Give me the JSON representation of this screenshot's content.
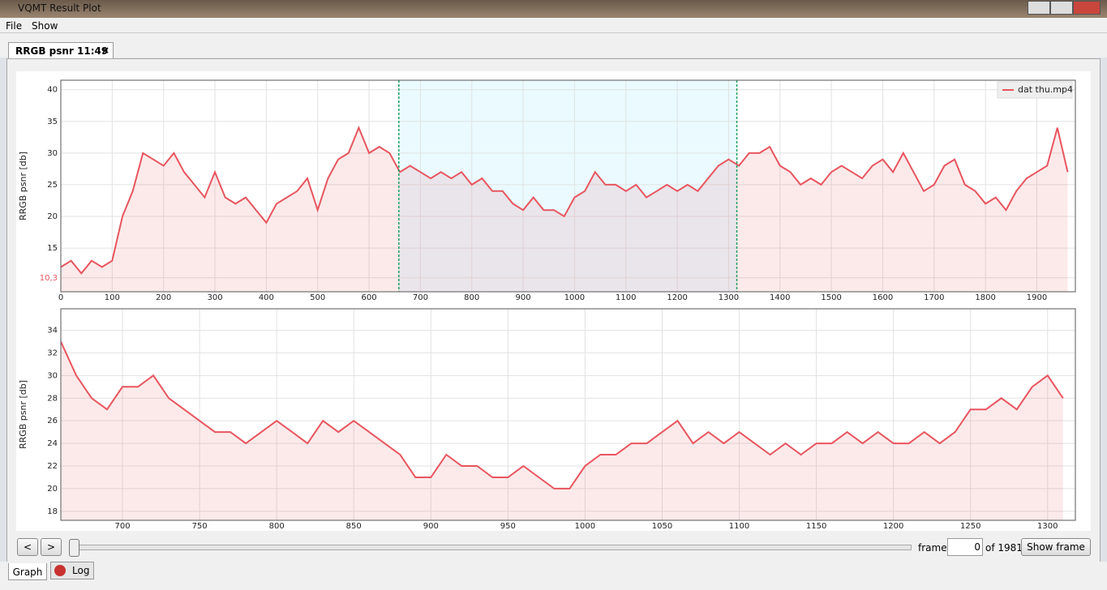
{
  "window": {
    "title": "VQMT Result Plot"
  },
  "menu": [
    "File",
    "Show"
  ],
  "tab": "RRGB psnr 11:49",
  "chart_data": [
    {
      "type": "line",
      "y_label": "RRGB psnr [db]",
      "legend": "top-right",
      "grid": true,
      "xlim": [
        0,
        1975
      ],
      "ylim": [
        8.1,
        41.5
      ],
      "xticks": [
        0,
        100,
        200,
        300,
        400,
        500,
        600,
        700,
        800,
        900,
        1000,
        1100,
        1200,
        1300,
        1400,
        1500,
        1600,
        1700,
        1800,
        1900
      ],
      "yticks": [
        {
          "value": 10.3,
          "label": "10,3"
        },
        15,
        20,
        25,
        30,
        35,
        40
      ],
      "selection": [
        658,
        1316
      ],
      "selection_color": "#eafaff",
      "x": [
        0,
        20,
        40,
        60,
        80,
        100,
        120,
        140,
        160,
        180,
        200,
        220,
        240,
        260,
        280,
        300,
        320,
        340,
        360,
        380,
        400,
        420,
        440,
        460,
        480,
        500,
        520,
        540,
        560,
        580,
        600,
        620,
        640,
        660,
        680,
        700,
        720,
        740,
        760,
        780,
        800,
        820,
        840,
        860,
        880,
        900,
        920,
        940,
        960,
        980,
        1000,
        1020,
        1040,
        1060,
        1080,
        1100,
        1120,
        1140,
        1160,
        1180,
        1200,
        1220,
        1240,
        1260,
        1280,
        1300,
        1320,
        1340,
        1360,
        1380,
        1400,
        1420,
        1440,
        1460,
        1480,
        1500,
        1520,
        1540,
        1560,
        1580,
        1600,
        1620,
        1640,
        1660,
        1680,
        1700,
        1720,
        1740,
        1760,
        1780,
        1800,
        1820,
        1840,
        1860,
        1880,
        1900,
        1920,
        1940,
        1960
      ],
      "series": [
        {
          "name": "dat thu.mp4",
          "color": "#e8555e",
          "values": [
            12,
            13,
            11,
            13,
            12,
            13,
            20,
            24,
            30,
            29,
            28,
            30,
            27,
            25,
            23,
            27,
            23,
            22,
            23,
            21,
            19,
            22,
            23,
            24,
            26,
            21,
            26,
            29,
            30,
            34,
            30,
            31,
            30,
            27,
            28,
            27,
            26,
            27,
            26,
            27,
            25,
            26,
            24,
            24,
            22,
            21,
            23,
            21,
            21,
            20,
            23,
            24,
            27,
            25,
            25,
            24,
            25,
            23,
            24,
            25,
            24,
            25,
            24,
            26,
            28,
            29,
            28,
            30,
            30,
            31,
            28,
            27,
            25,
            26,
            25,
            27,
            28,
            27,
            26,
            28,
            29,
            27,
            30,
            27,
            24,
            25,
            28,
            29,
            25,
            24,
            22,
            23,
            21,
            24,
            26,
            27,
            28,
            34,
            27
          ]
        }
      ]
    },
    {
      "type": "line",
      "y_label": "RRGB psnr [db]",
      "grid": true,
      "color": "#e8555e",
      "xlim": [
        660,
        1318
      ],
      "ylim": [
        17.2,
        35.9
      ],
      "xticks": [
        700,
        750,
        800,
        850,
        900,
        950,
        1000,
        1050,
        1100,
        1150,
        1200,
        1250,
        1300
      ],
      "yticks": [
        18,
        20,
        22,
        24,
        26,
        28,
        30,
        32,
        34
      ],
      "x": [
        660,
        670,
        680,
        690,
        700,
        710,
        720,
        730,
        740,
        750,
        760,
        770,
        780,
        790,
        800,
        810,
        820,
        830,
        840,
        850,
        860,
        870,
        880,
        890,
        900,
        910,
        920,
        930,
        940,
        950,
        960,
        970,
        980,
        990,
        1000,
        1010,
        1020,
        1030,
        1040,
        1050,
        1060,
        1070,
        1080,
        1090,
        1100,
        1110,
        1120,
        1130,
        1140,
        1150,
        1160,
        1170,
        1180,
        1190,
        1200,
        1210,
        1220,
        1230,
        1240,
        1250,
        1260,
        1270,
        1280,
        1290,
        1300,
        1310
      ],
      "values": [
        33,
        30,
        28,
        27,
        29,
        29,
        30,
        28,
        27,
        26,
        25,
        25,
        24,
        25,
        26,
        25,
        24,
        26,
        25,
        26,
        25,
        24,
        23,
        21,
        21,
        23,
        22,
        22,
        21,
        21,
        22,
        21,
        20,
        20,
        22,
        23,
        23,
        24,
        24,
        25,
        26,
        24,
        25,
        24,
        25,
        24,
        23,
        24,
        23,
        24,
        24,
        25,
        24,
        25,
        24,
        24,
        25,
        24,
        25,
        27,
        27,
        28,
        27,
        29,
        30,
        28
      ]
    }
  ],
  "controls": {
    "prev": "<",
    "next": ">",
    "frame_label": "frame",
    "frame_value": "0",
    "frame_total": "of 1981",
    "show_button": "Show frame"
  },
  "bottom_tabs": [
    "Graph",
    "Log"
  ]
}
